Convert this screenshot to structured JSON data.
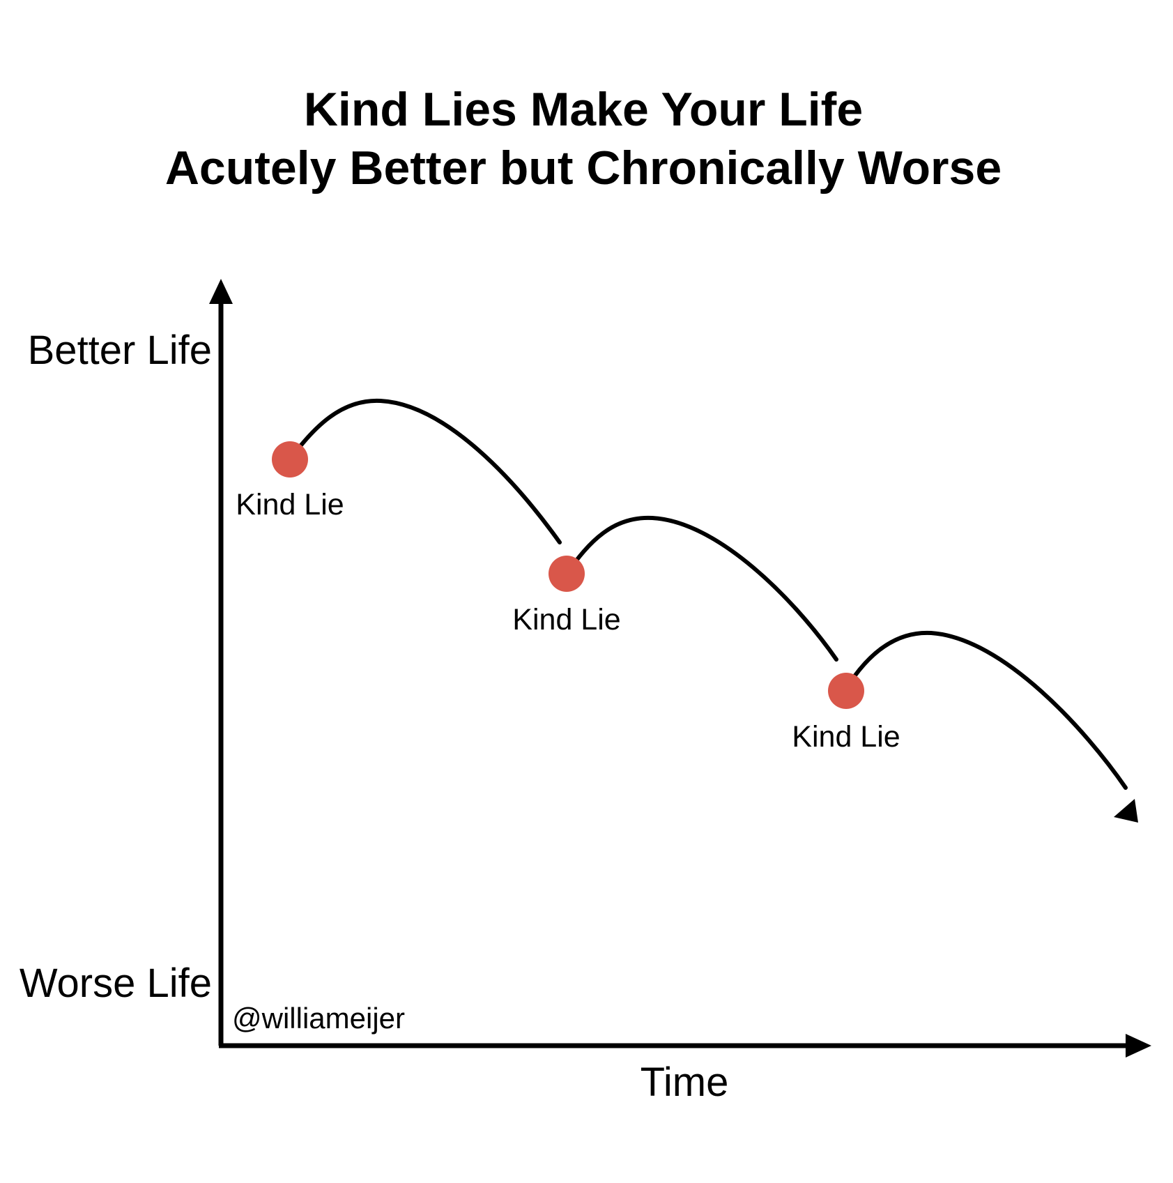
{
  "title": {
    "line1": "Kind Lies Make Your Life",
    "line2": "Acutely Better but Chronically Worse"
  },
  "axes": {
    "y_top_label": "Better Life",
    "y_bottom_label": "Worse Life",
    "x_label": "Time"
  },
  "points": [
    {
      "label": "Kind Lie"
    },
    {
      "label": "Kind Lie"
    },
    {
      "label": "Kind Lie"
    }
  ],
  "credit": "@williameijer",
  "colors": {
    "marker": "#d9574a",
    "line": "#000000",
    "background": "#ffffff"
  }
}
